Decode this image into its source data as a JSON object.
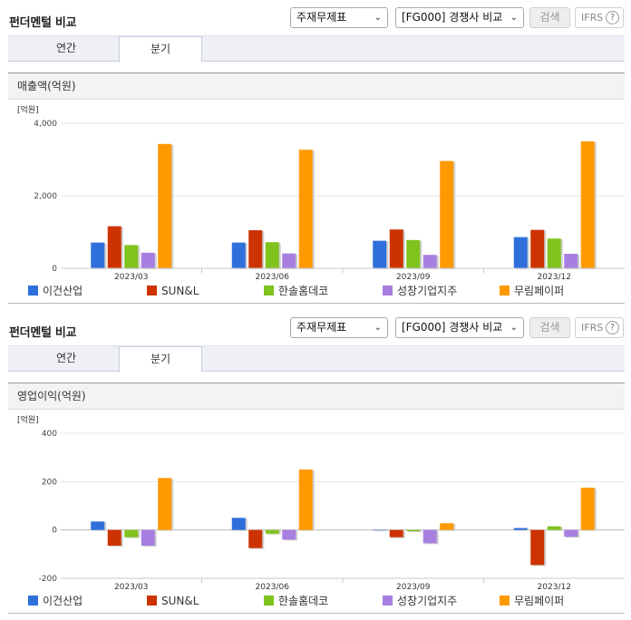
{
  "sections": [
    {
      "title": "펀더멘털 비교",
      "select_a": "주재무제표",
      "select_b": "[FG000] 경쟁사 비교",
      "search_label": "검색",
      "ifrs_label": "IFRS",
      "ifrs_help": "?",
      "tabs": [
        "연간",
        "분기"
      ],
      "active_tab": "분기",
      "subhead": "매출액(억원)",
      "unit": "[억원]"
    },
    {
      "title": "펀더멘털 비교",
      "select_a": "주재무제표",
      "select_b": "[FG000] 경쟁사 비교",
      "search_label": "검색",
      "ifrs_label": "IFRS",
      "ifrs_help": "?",
      "tabs": [
        "연간",
        "분기"
      ],
      "active_tab": "분기",
      "subhead": "영업이익(억원)",
      "unit": "[억원]"
    }
  ],
  "legend": [
    {
      "name": "이건산업",
      "color": "#2f6fdc"
    },
    {
      "name": "SUN&L",
      "color": "#cc3300"
    },
    {
      "name": "한솔홈데코",
      "color": "#7fc31c"
    },
    {
      "name": "성창기업지주",
      "color": "#a77fe0"
    },
    {
      "name": "무림페이퍼",
      "color": "#ff9900"
    }
  ],
  "chart_data": [
    {
      "type": "bar",
      "title": "매출액(억원)",
      "ylabel": "[억원]",
      "categories": [
        "2023/03",
        "2023/06",
        "2023/09",
        "2023/12"
      ],
      "ylim": [
        0,
        4000
      ],
      "yticks": [
        "0",
        "2,000",
        "4,000"
      ],
      "ytick_values": [
        0,
        2000,
        4000
      ],
      "series": [
        {
          "name": "이건산업",
          "values": [
            710,
            710,
            760,
            860
          ]
        },
        {
          "name": "SUN&L",
          "values": [
            1160,
            1050,
            1070,
            1060
          ]
        },
        {
          "name": "한솔홈데코",
          "values": [
            640,
            720,
            780,
            820
          ]
        },
        {
          "name": "성창기업지주",
          "values": [
            430,
            410,
            370,
            400
          ]
        },
        {
          "name": "무림페이퍼",
          "values": [
            3430,
            3270,
            2960,
            3500
          ]
        }
      ]
    },
    {
      "type": "bar",
      "title": "영업이익(억원)",
      "ylabel": "[억원]",
      "categories": [
        "2023/03",
        "2023/06",
        "2023/09",
        "2023/12"
      ],
      "ylim": [
        -200,
        400
      ],
      "yticks": [
        "-200",
        "0",
        "200",
        "400"
      ],
      "ytick_values": [
        -200,
        0,
        200,
        400
      ],
      "series": [
        {
          "name": "이건산업",
          "values": [
            35,
            50,
            0,
            8
          ]
        },
        {
          "name": "SUN&L",
          "values": [
            -65,
            -75,
            -30,
            -145
          ]
        },
        {
          "name": "한솔홈데코",
          "values": [
            -30,
            -15,
            -5,
            15
          ]
        },
        {
          "name": "성창기업지주",
          "values": [
            -65,
            -40,
            -55,
            -28
          ]
        },
        {
          "name": "무림페이퍼",
          "values": [
            215,
            250,
            28,
            175
          ]
        }
      ]
    }
  ]
}
